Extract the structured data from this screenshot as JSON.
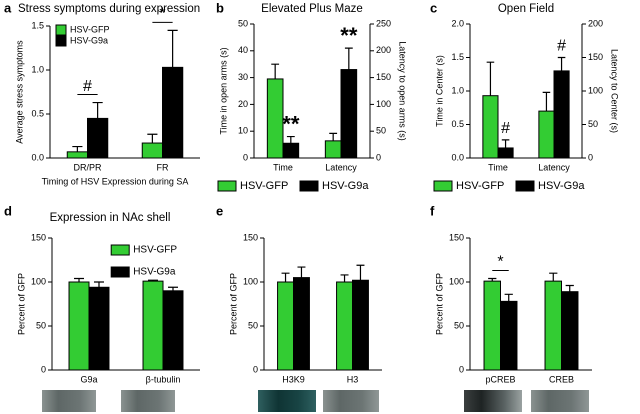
{
  "chart_data": [
    {
      "type": "bar",
      "panel": "a",
      "title": "Stress symptoms during expression",
      "ylabel": "Average stress symptoms",
      "xlabel": "Timing of HSV Expression during SA",
      "categories": [
        "DR/PR",
        "FR"
      ],
      "series": [
        {
          "name": "HSV-GFP",
          "color": "#33cc33",
          "values": [
            0.07,
            0.17
          ],
          "errors": [
            0.06,
            0.1
          ]
        },
        {
          "name": "HSV-G9a",
          "color": "#000000",
          "values": [
            0.45,
            1.03
          ],
          "errors": [
            0.18,
            0.42
          ]
        }
      ],
      "ylim": [
        0,
        1.5
      ],
      "yticks": [
        {
          "value": 0,
          "label": "0.0"
        },
        0.5,
        {
          "value": 1,
          "label": "1.0"
        },
        1.5
      ],
      "legend": "upper left",
      "annotations": [
        {
          "text": "#",
          "x": "DR/PR"
        },
        {
          "text": "*",
          "x": "FR"
        }
      ]
    },
    {
      "type": "bar",
      "panel": "b",
      "title": "Elevated Plus Maze",
      "ylabel": "Time in open arms (s)",
      "y2label": "Latency to open arms (s)",
      "categories": [
        "Time",
        "Latency"
      ],
      "category_axis": [
        "y",
        "y2"
      ],
      "series": [
        {
          "name": "HSV-GFP",
          "color": "#33cc33",
          "values": [
            29.5,
            32
          ],
          "errors": [
            5.5,
            14
          ]
        },
        {
          "name": "HSV-G9a",
          "color": "#000000",
          "values": [
            5.5,
            165
          ],
          "errors": [
            2.5,
            40
          ]
        }
      ],
      "ylim": [
        0,
        50
      ],
      "yticks": [
        0,
        10,
        20,
        30,
        40,
        50
      ],
      "y2lim": [
        0,
        250
      ],
      "y2ticks": [
        0,
        50,
        100,
        150,
        200,
        250
      ],
      "legend": "bottom",
      "annotations": [
        {
          "text": "**",
          "x": "Time",
          "series": "HSV-G9a"
        },
        {
          "text": "**",
          "x": "Latency",
          "series": "HSV-G9a"
        }
      ]
    },
    {
      "type": "bar",
      "panel": "c",
      "title": "Open Field",
      "ylabel": "Time in Center (s)",
      "y2label": "Latency to Center (s)",
      "categories": [
        "Time",
        "Latency"
      ],
      "category_axis": [
        "y",
        "y2"
      ],
      "series": [
        {
          "name": "HSV-GFP",
          "color": "#33cc33",
          "values": [
            0.93,
            70
          ],
          "errors": [
            0.5,
            28
          ]
        },
        {
          "name": "HSV-G9a",
          "color": "#000000",
          "values": [
            0.15,
            130
          ],
          "errors": [
            0.12,
            20
          ]
        }
      ],
      "ylim": [
        0,
        2
      ],
      "yticks": [
        {
          "value": 0,
          "label": "0.0"
        },
        0.5,
        {
          "value": 1,
          "label": "1.0"
        },
        1.5,
        {
          "value": 2,
          "label": "2.0"
        }
      ],
      "y2lim": [
        0,
        200
      ],
      "y2ticks": [
        0,
        50,
        100,
        150,
        200
      ],
      "legend": "bottom",
      "annotations": [
        {
          "text": "#",
          "x": "Time",
          "series": "HSV-G9a"
        },
        {
          "text": "#",
          "x": "Latency",
          "series": "HSV-G9a"
        }
      ]
    },
    {
      "type": "bar",
      "panel": "d",
      "title": "Expression in NAc shell",
      "ylabel": "Percent of GFP",
      "categories": [
        "G9a",
        "β-tubulin"
      ],
      "series": [
        {
          "name": "HSV-GFP",
          "color": "#33cc33",
          "values": [
            100,
            101
          ],
          "errors": [
            4,
            1
          ]
        },
        {
          "name": "HSV-G9a",
          "color": "#000000",
          "values": [
            94,
            90
          ],
          "errors": [
            6,
            4
          ]
        }
      ],
      "ylim": [
        0,
        150
      ],
      "yticks": [
        0,
        50,
        100,
        150
      ],
      "legend": "upper right"
    },
    {
      "type": "bar",
      "panel": "e",
      "ylabel": "Percent of GFP",
      "categories": [
        "H3K9",
        "H3"
      ],
      "series": [
        {
          "color": "#33cc33",
          "values": [
            100,
            100
          ],
          "errors": [
            10,
            8
          ]
        },
        {
          "color": "#000000",
          "values": [
            105,
            102
          ],
          "errors": [
            12,
            17
          ]
        }
      ],
      "ylim": [
        0,
        150
      ],
      "yticks": [
        0,
        50,
        100,
        150
      ]
    },
    {
      "type": "bar",
      "panel": "f",
      "ylabel": "Percent of GFP",
      "categories": [
        "pCREB",
        "CREB"
      ],
      "series": [
        {
          "color": "#33cc33",
          "values": [
            101,
            101
          ],
          "errors": [
            3,
            9
          ]
        },
        {
          "color": "#000000",
          "values": [
            78,
            89
          ],
          "errors": [
            8,
            7
          ]
        }
      ],
      "ylim": [
        0,
        150
      ],
      "yticks": [
        0,
        50,
        100,
        150
      ],
      "annotations": [
        {
          "text": "*",
          "x": "pCREB"
        }
      ]
    }
  ]
}
